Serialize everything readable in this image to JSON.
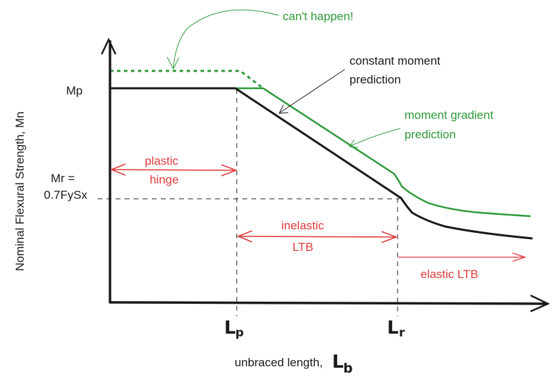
{
  "axes": {
    "ylabel": "Nominal Flexural Strength, Mn",
    "xlabel": "unbraced length,",
    "xlabel_symbol": "L",
    "xlabel_symbol_sub": "b"
  },
  "levels": {
    "mp": "Mp",
    "mr_line1": "Mr =",
    "mr_line2": "0.7FySx"
  },
  "ticks": {
    "lp": "L",
    "lp_sub": "p",
    "lr": "L",
    "lr_sub": "r"
  },
  "annotations": {
    "cant_happen": "can't happen!",
    "constant_moment_1": "constant moment",
    "constant_moment_2": "prediction",
    "moment_gradient_1": "moment gradient",
    "moment_gradient_2": "prediction",
    "plastic_1": "plastic",
    "plastic_2": "hinge",
    "inelastic_1": "inelastic",
    "inelastic_2": "LTB",
    "elastic": "elastic LTB"
  },
  "colors": {
    "constant_moment_curve": "#1a1a1a",
    "moment_gradient_curve": "#2e9a3a",
    "region_labels": "#e03a3a",
    "axes": "#1a1a1a"
  }
}
